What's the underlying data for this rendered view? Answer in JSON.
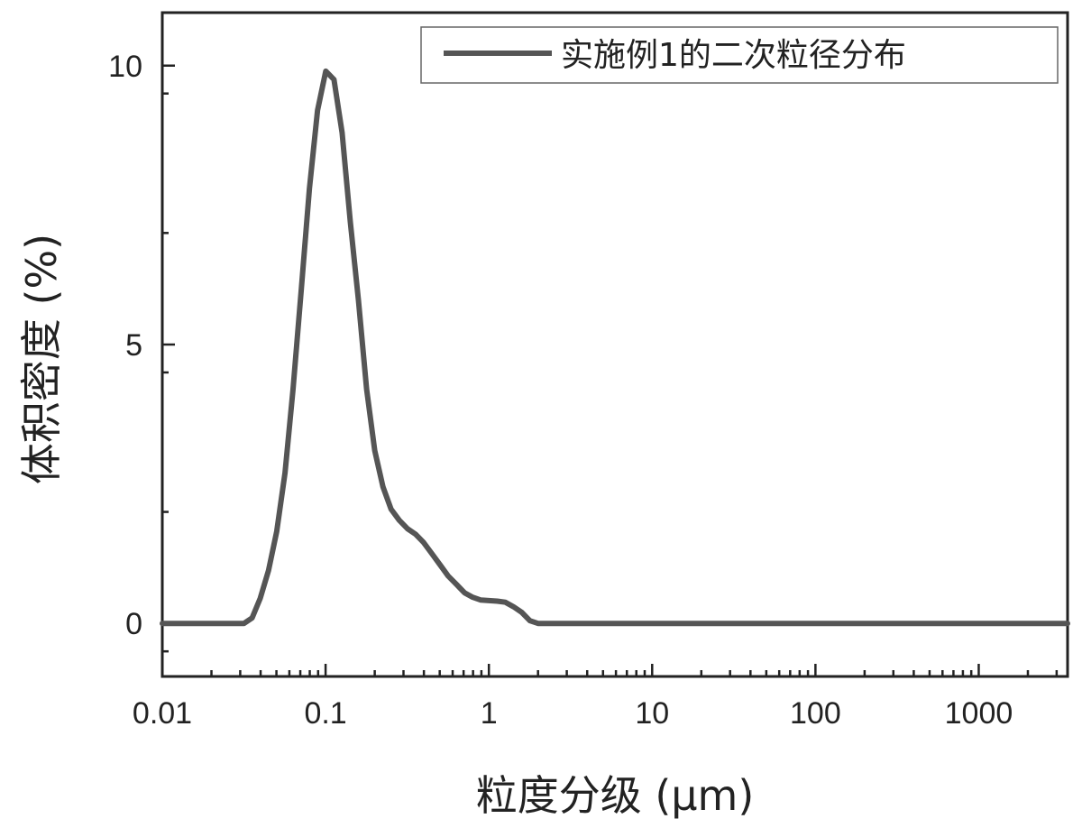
{
  "chart_data": {
    "type": "line",
    "xscale": "log",
    "xlim": [
      0.01,
      3500
    ],
    "ylim": [
      -0.95,
      10.95
    ],
    "xlabel": "粒度分级 (μm)",
    "ylabel": "体积密度 (%)",
    "xticks": [
      {
        "value": 0.01,
        "label": "0.01"
      },
      {
        "value": 0.1,
        "label": "0.1"
      },
      {
        "value": 1,
        "label": "1"
      },
      {
        "value": 10,
        "label": "10"
      },
      {
        "value": 100,
        "label": "100"
      },
      {
        "value": 1000,
        "label": "1000"
      }
    ],
    "yticks": [
      {
        "value": 0,
        "label": "0"
      },
      {
        "value": 5,
        "label": "5"
      },
      {
        "value": 10,
        "label": "10"
      }
    ],
    "legend_position": "top-right",
    "series": [
      {
        "name": "实施例1的二次粒径分布",
        "color": "#555555",
        "x": [
          0.01,
          0.0316,
          0.0355,
          0.0398,
          0.0447,
          0.0502,
          0.0564,
          0.0632,
          0.071,
          0.0796,
          0.0893,
          0.1002,
          0.1125,
          0.1262,
          0.1416,
          0.1589,
          0.1783,
          0.2,
          0.2244,
          0.2518,
          0.2825,
          0.317,
          0.3557,
          0.3991,
          0.4477,
          0.5024,
          0.5637,
          0.6325,
          0.7096,
          0.7962,
          0.8934,
          1.002,
          1.125,
          1.262,
          1.416,
          1.589,
          1.783,
          2.0,
          2.244,
          2.518,
          2.825,
          3.17,
          10,
          100,
          1000,
          3500
        ],
        "y": [
          0,
          0,
          0.1,
          0.45,
          0.95,
          1.65,
          2.7,
          4.2,
          6.0,
          7.8,
          9.2,
          9.9,
          9.75,
          8.8,
          7.2,
          5.8,
          4.2,
          3.1,
          2.45,
          2.05,
          1.85,
          1.7,
          1.6,
          1.45,
          1.25,
          1.05,
          0.85,
          0.7,
          0.55,
          0.47,
          0.42,
          0.41,
          0.4,
          0.38,
          0.3,
          0.2,
          0.05,
          0,
          0,
          0,
          0,
          0,
          0,
          0,
          0,
          0
        ]
      }
    ]
  }
}
